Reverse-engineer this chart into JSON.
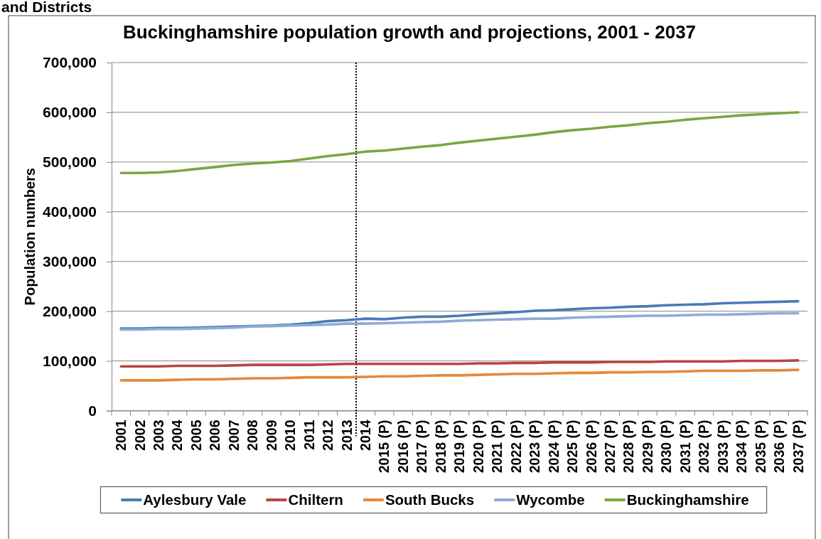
{
  "chart_data": {
    "type": "line",
    "title": "Buckinghamshire population growth and projections, 2001 - 2037",
    "ylabel": "Population numbers",
    "annotations": [
      "and Districts"
    ],
    "categories": [
      "2001",
      "2002",
      "2003",
      "2004",
      "2005",
      "2006",
      "2007",
      "2008",
      "2009",
      "2010",
      "2011",
      "2012",
      "2013",
      "2014",
      "2015 (P)",
      "2016 (P)",
      "2017 (P)",
      "2018 (P)",
      "2019 (P)",
      "2020 (P)",
      "2021 (P)",
      "2022 (P)",
      "2023 (P)",
      "2024 (P)",
      "2025 (P)",
      "2026 (P)",
      "2027 (P)",
      "2028 (P)",
      "2029 (P)",
      "2030 (P)",
      "2031 (P)",
      "2032 (P)",
      "2033 (P)",
      "2034 (P)",
      "2035 (P)",
      "2036 (P)",
      "2037 (P)"
    ],
    "series": [
      {
        "name": "Aylesbury Vale",
        "color": "#4a7ab5",
        "values": [
          165000,
          165000,
          166000,
          166000,
          167000,
          168000,
          169000,
          170000,
          171000,
          173000,
          176000,
          180000,
          182000,
          185000,
          184000,
          187000,
          189000,
          189000,
          191000,
          194000,
          196000,
          198000,
          201000,
          202000,
          204000,
          206000,
          207000,
          209000,
          210000,
          212000,
          213000,
          214000,
          216000,
          217000,
          218000,
          219000,
          220000
        ]
      },
      {
        "name": "Chiltern",
        "color": "#b94442",
        "values": [
          89000,
          89000,
          89000,
          90000,
          90000,
          90000,
          91000,
          92000,
          92000,
          92000,
          92000,
          93000,
          94000,
          94000,
          94000,
          94000,
          94000,
          94000,
          94000,
          95000,
          95000,
          96000,
          96000,
          97000,
          97000,
          97000,
          98000,
          98000,
          98000,
          99000,
          99000,
          99000,
          99000,
          100000,
          100000,
          100000,
          101000
        ]
      },
      {
        "name": "South Bucks",
        "color": "#e8883a",
        "values": [
          61000,
          61000,
          61000,
          62000,
          63000,
          63000,
          64000,
          65000,
          65000,
          66000,
          67000,
          67000,
          67000,
          68000,
          69000,
          69000,
          70000,
          71000,
          71000,
          72000,
          73000,
          74000,
          74000,
          75000,
          76000,
          76000,
          77000,
          77000,
          78000,
          78000,
          79000,
          80000,
          80000,
          80000,
          81000,
          81000,
          82000
        ]
      },
      {
        "name": "Wycombe",
        "color": "#8eaad6",
        "values": [
          163000,
          163000,
          164000,
          164000,
          165000,
          166000,
          167000,
          169000,
          170000,
          171000,
          172000,
          173000,
          175000,
          175000,
          176000,
          177000,
          178000,
          179000,
          181000,
          182000,
          183000,
          184000,
          185000,
          185000,
          187000,
          188000,
          189000,
          190000,
          191000,
          191000,
          192000,
          193000,
          193000,
          194000,
          195000,
          196000,
          196000
        ]
      },
      {
        "name": "Buckinghamshire",
        "color": "#7da543",
        "values": [
          478000,
          478000,
          479000,
          482000,
          486000,
          490000,
          494000,
          497000,
          499000,
          502000,
          507000,
          512000,
          516000,
          521000,
          523000,
          527000,
          531000,
          534000,
          539000,
          543000,
          547000,
          551000,
          555000,
          560000,
          564000,
          567000,
          571000,
          574000,
          578000,
          581000,
          585000,
          588000,
          591000,
          594000,
          596000,
          598000,
          600000
        ]
      }
    ],
    "ylim": [
      0,
      700000
    ],
    "yticks": [
      0,
      {
        "value": 100000,
        "label": "100,000"
      },
      {
        "value": 200000,
        "label": "200,000"
      },
      {
        "value": 300000,
        "label": "300,000"
      },
      {
        "value": 400000,
        "label": "400,000"
      },
      {
        "value": 500000,
        "label": "500,000"
      },
      {
        "value": 600000,
        "label": "600,000"
      },
      {
        "value": 700000,
        "label": "700,000"
      }
    ],
    "grid": "y",
    "legend": "bottom",
    "ref_lines": [
      {
        "axis": "x",
        "value": "2014",
        "line_style": "dotted",
        "color": "#000000"
      }
    ]
  }
}
